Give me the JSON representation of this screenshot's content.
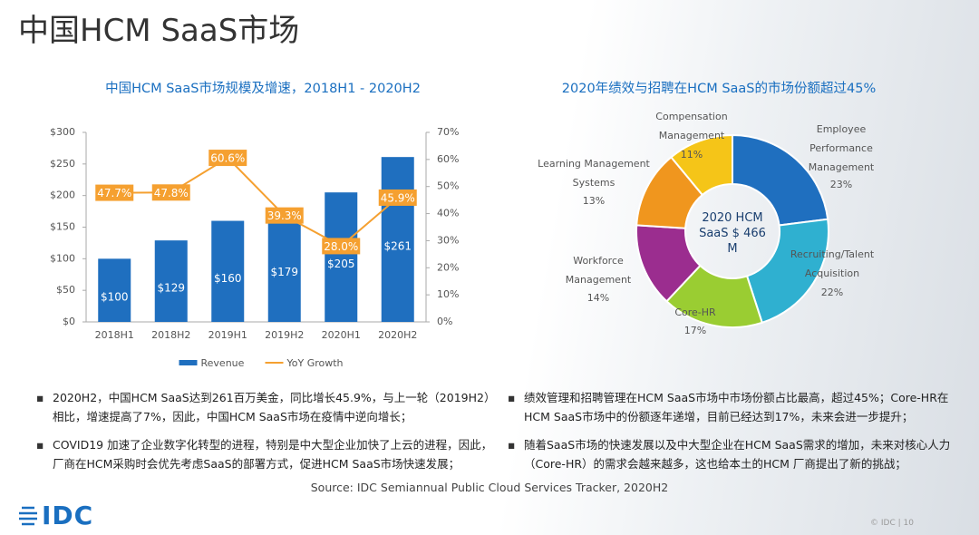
{
  "title": "中国HCM SaaS市场",
  "chart_data": [
    {
      "type": "combo",
      "title": "中国HCM SaaS市场规模及增速，2018H1 - 2020H2",
      "categories": [
        "2018H1",
        "2018H2",
        "2019H1",
        "2019H2",
        "2020H1",
        "2020H2"
      ],
      "series": [
        {
          "name": "Revenue",
          "type": "bar",
          "color": "#1f6fbf",
          "values": [
            100,
            129,
            160,
            179,
            205,
            261
          ],
          "value_labels": [
            "$100",
            "$129",
            "$160",
            "$179",
            "$205",
            "$261"
          ]
        },
        {
          "name": "YoY Growth",
          "type": "line",
          "axis": "y2",
          "color": "#f5a030",
          "values": [
            47.7,
            47.8,
            60.6,
            39.3,
            28.0,
            45.9
          ],
          "value_labels": [
            "47.7%",
            "47.8%",
            "60.6%",
            "39.3%",
            "28.0%",
            "45.9%"
          ]
        }
      ],
      "ylim": [
        0,
        300
      ],
      "yticks": [
        {
          "value": 0,
          "label": "$0"
        },
        {
          "value": 50,
          "label": "$50"
        },
        {
          "value": 100,
          "label": "$100"
        },
        {
          "value": 150,
          "label": "$150"
        },
        {
          "value": 200,
          "label": "$200"
        },
        {
          "value": 250,
          "label": "$250"
        },
        {
          "value": 300,
          "label": "$300"
        }
      ],
      "y2lim": [
        0,
        70
      ],
      "y2ticks": [
        {
          "value": 0,
          "label": "0%"
        },
        {
          "value": 10,
          "label": "10%"
        },
        {
          "value": 20,
          "label": "20%"
        },
        {
          "value": 30,
          "label": "30%"
        },
        {
          "value": 40,
          "label": "40%"
        },
        {
          "value": 50,
          "label": "50%"
        },
        {
          "value": 60,
          "label": "60%"
        },
        {
          "value": 70,
          "label": "70%"
        }
      ],
      "legend": "bottom"
    },
    {
      "type": "pie",
      "donut": true,
      "title": "2020年绩效与招聘在HCM SaaS的市场份额超过45%",
      "center_label": "2020 HCM SaaS $ 466 M",
      "categories": [
        "Employee Performance Management",
        "Recruiting/Talent Acquisition",
        "Core-HR",
        "Workforce Management",
        "Learning Management Systems",
        "Compensation Management"
      ],
      "values": [
        23,
        22,
        17,
        14,
        13,
        11
      ],
      "value_labels": [
        "23%",
        "22%",
        "17%",
        "14%",
        "13%",
        "11%"
      ],
      "colors": [
        "#1f6fbf",
        "#2fb0d0",
        "#9acd32",
        "#9b2d8f",
        "#f0961e",
        "#f5c518"
      ]
    }
  ],
  "bullets_left": [
    "2020H2，中国HCM SaaS达到261百万美金，同比增长45.9%，与上一轮（2019H2）相比，增速提高了7%，因此，中国HCM SaaS市场在疫情中逆向增长；",
    "COVID19 加速了企业数字化转型的进程，特别是中大型企业加快了上云的进程，因此，厂商在HCM采购时会优先考虑SaaS的部署方式，促进HCM SaaS市场快速发展；"
  ],
  "bullets_right": [
    "绩效管理和招聘管理在HCM SaaS市场中市场份额占比最高，超过45%；Core-HR在HCM SaaS市场中的份额逐年递增，目前已经达到17%，未来会进一步提升；",
    "随着SaaS市场的快速发展以及中大型企业在HCM SaaS需求的增加，未来对核心人力（Core-HR）的需求会越来越多，这也给本土的HCM 厂商提出了新的挑战；"
  ],
  "source": "Source: IDC Semiannual Public Cloud Services Tracker, 2020H2",
  "logo": "IDC",
  "footer": "© IDC | 10"
}
